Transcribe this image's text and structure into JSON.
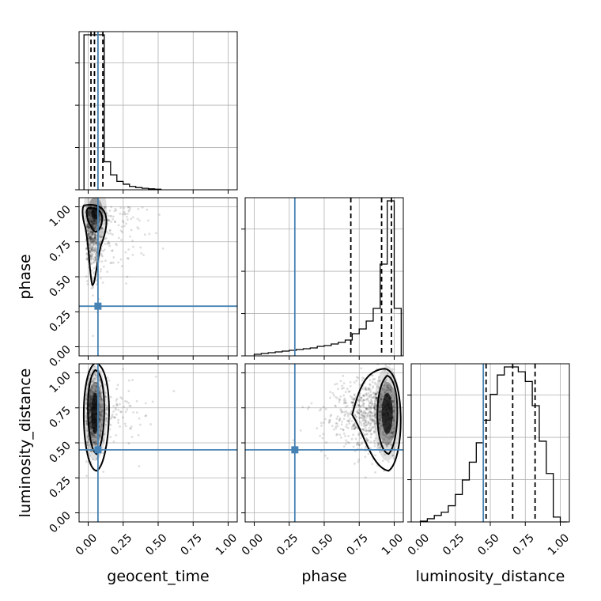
{
  "chart_data": {
    "type": "corner",
    "parameters": [
      "geocent_time",
      "phase",
      "luminosity_distance"
    ],
    "axis_range": [
      0,
      1
    ],
    "tick_labels": [
      "0.00",
      "0.25",
      "0.50",
      "0.75",
      "1.00"
    ],
    "truths": {
      "geocent_time": 0.07,
      "phase": 0.29,
      "luminosity_distance": 0.45
    },
    "truth_color": "#4682b4",
    "grid": true,
    "histograms": {
      "geocent_time": {
        "bin_edges": [
          -0.03,
          0.025,
          0.07,
          0.115,
          0.16,
          0.205,
          0.25,
          0.295,
          0.34,
          0.385,
          0.43,
          0.475,
          0.52
        ],
        "counts": [
          0.83,
          0.83,
          0.83,
          0.15,
          0.08,
          0.045,
          0.03,
          0.018,
          0.012,
          0.008,
          0.005,
          0.003
        ],
        "quantiles": [
          0.02,
          0.045,
          0.105
        ]
      },
      "phase": {
        "bin_edges": [
          0,
          0.05,
          0.1,
          0.15,
          0.2,
          0.25,
          0.3,
          0.35,
          0.4,
          0.45,
          0.5,
          0.55,
          0.6,
          0.65,
          0.7,
          0.75,
          0.8,
          0.85,
          0.9,
          0.95,
          1.0,
          1.05
        ],
        "counts": [
          0.01,
          0.015,
          0.02,
          0.025,
          0.03,
          0.035,
          0.04,
          0.045,
          0.05,
          0.06,
          0.065,
          0.075,
          0.085,
          0.1,
          0.14,
          0.17,
          0.22,
          0.3,
          0.58,
          0.98,
          0.3
        ],
        "quantiles": [
          0.69,
          0.91,
          0.98
        ]
      },
      "luminosity_distance": {
        "bin_edges": [
          0,
          0.05,
          0.1,
          0.15,
          0.2,
          0.25,
          0.3,
          0.35,
          0.4,
          0.45,
          0.5,
          0.55,
          0.6,
          0.65,
          0.7,
          0.75,
          0.8,
          0.85,
          0.9,
          0.95,
          1.0,
          1.05
        ],
        "counts": [
          0.005,
          0.02,
          0.04,
          0.06,
          0.1,
          0.17,
          0.26,
          0.37,
          0.49,
          0.63,
          0.79,
          0.91,
          0.96,
          0.96,
          0.93,
          0.87,
          0.72,
          0.5,
          0.3,
          0.03,
          0.0
        ],
        "quantiles": [
          0.47,
          0.66,
          0.82
        ]
      }
    },
    "posteriors_2d": [
      {
        "x": "geocent_time",
        "y": "phase",
        "mode": [
          0.05,
          0.95
        ],
        "sigma": [
          0.04,
          0.12
        ],
        "tail": "towards low phase"
      },
      {
        "x": "geocent_time",
        "y": "luminosity_distance",
        "mode": [
          0.05,
          0.71
        ],
        "sigma": [
          0.04,
          0.13
        ]
      },
      {
        "x": "phase",
        "y": "luminosity_distance",
        "mode": [
          0.95,
          0.71
        ],
        "sigma": [
          0.05,
          0.13
        ],
        "tail": "towards low phase"
      }
    ]
  }
}
